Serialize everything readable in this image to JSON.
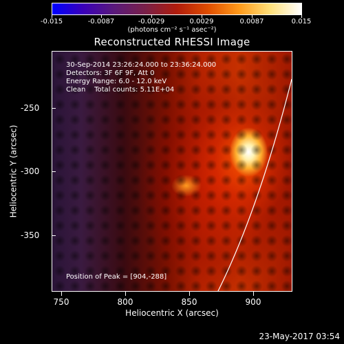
{
  "colorbar": {
    "labels": [
      "-0.015",
      "-0.0087",
      "-0.0029",
      "0.0029",
      "0.0087",
      "0.015"
    ],
    "units": "(photons cm⁻² s⁻¹ asec⁻²)"
  },
  "title": "Reconstructed RHESSI Image",
  "info": {
    "line1": "30-Sep-2014 23:26:24.000 to 23:36:24.000",
    "line2": "Detectors: 3F 6F 9F, Att 0",
    "line3": "Energy Range: 6.0 - 12.0 keV",
    "line4": "Clean    Total counts: 5.11E+04",
    "peak": "Position of Peak = [904,-288]"
  },
  "axes": {
    "x_ticks": [
      "750",
      "800",
      "850",
      "900"
    ],
    "y_ticks": [
      "-250",
      "-300",
      "-350"
    ],
    "xlabel": "Heliocentric X (arcsec)",
    "ylabel": "Heliocentric Y (arcsec)"
  },
  "footer": "23-May-2017 03:54"
}
